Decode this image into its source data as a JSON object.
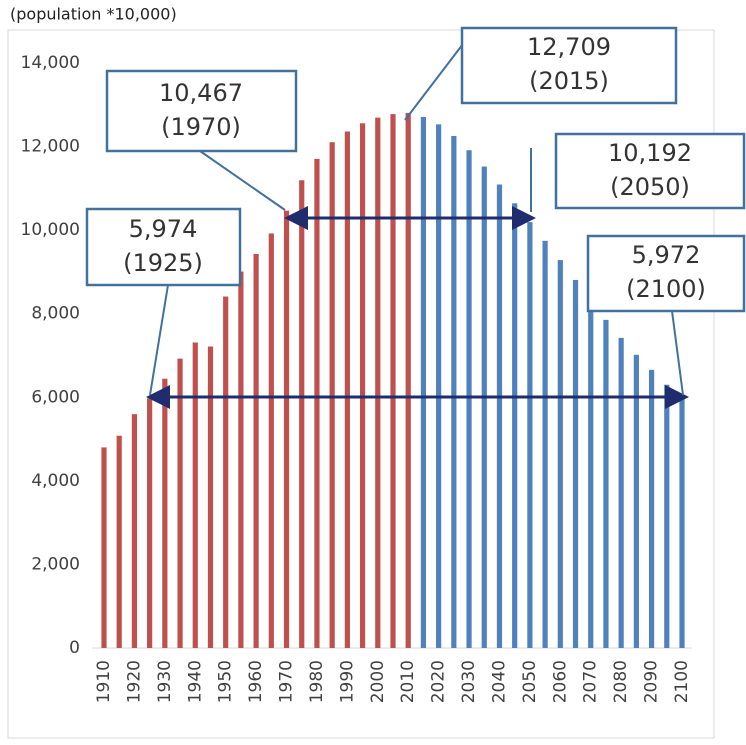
{
  "chart_data": {
    "type": "bar",
    "title": "(population *10,000)",
    "categories": [
      "1910",
      null,
      "1920",
      null,
      "1930",
      null,
      "1940",
      null,
      "1950",
      null,
      "1960",
      null,
      "1970",
      null,
      "1980",
      null,
      "1990",
      null,
      "2000",
      null,
      "2010",
      null,
      "2020",
      null,
      "2030",
      null,
      "2040",
      null,
      "2050",
      null,
      "2060",
      null,
      "2070",
      null,
      "2080",
      null,
      "2090",
      null,
      "2100"
    ],
    "series": [
      {
        "color": "#c0504d",
        "values": [
          4800,
          5080,
          5596,
          5974,
          6445,
          6925,
          7311,
          7215,
          8411,
          9008,
          9430,
          9921,
          10467,
          11194,
          11706,
          12105,
          12361,
          12557,
          12693,
          12777,
          12806,
          null,
          null,
          null,
          null,
          null,
          null,
          null,
          null,
          null,
          null,
          null,
          null,
          null,
          null,
          null,
          null,
          null,
          null
        ]
      },
      {
        "color": "#4f81bd",
        "values": [
          null,
          null,
          null,
          null,
          null,
          null,
          null,
          null,
          null,
          null,
          null,
          null,
          null,
          null,
          null,
          null,
          null,
          null,
          null,
          null,
          null,
          12709,
          12532,
          12254,
          11913,
          11522,
          11092,
          10642,
          10192,
          9744,
          9284,
          8808,
          8323,
          7853,
          7421,
          7017,
          6656,
          6300,
          5972
        ]
      }
    ],
    "ylim": [
      0,
      14000
    ],
    "yticks": [
      0,
      {
        "value": 2000,
        "label": "2,000"
      },
      {
        "value": 4000,
        "label": "4,000"
      },
      {
        "value": 6000,
        "label": "6,000"
      },
      {
        "value": 8000,
        "label": "8,000"
      },
      {
        "value": 10000,
        "label": "10,000"
      },
      {
        "value": 12000,
        "label": "12,000"
      },
      {
        "value": 14000,
        "label": "14,000"
      }
    ],
    "grid": false,
    "annotations": [
      {
        "value": "12,709",
        "year": "(2015)"
      },
      {
        "value": "10,467",
        "year": "(1970)"
      },
      {
        "value": "10,192",
        "year": "(2050)"
      },
      {
        "value": "5,974",
        "year": "(1925)"
      },
      {
        "value": "5,972",
        "year": "(2100)"
      }
    ]
  }
}
